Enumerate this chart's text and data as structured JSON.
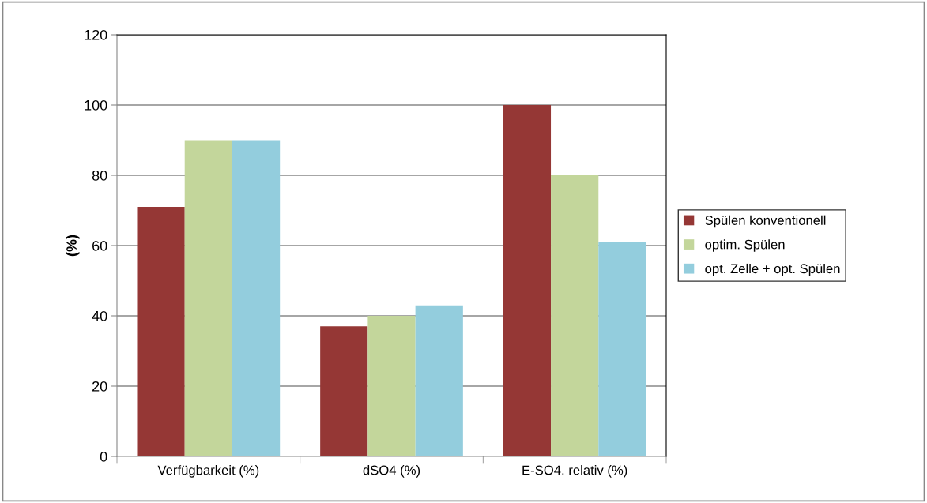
{
  "chart_data": {
    "type": "bar",
    "ylabel": "(%)",
    "categories": [
      "Verfügbarkeit (%)",
      "dSO4 (%)",
      "E-SO4. relativ (%)"
    ],
    "series": [
      {
        "name": "Spülen konventionell",
        "color": "#953735",
        "values": [
          71,
          37,
          100
        ]
      },
      {
        "name": "optim. Spülen",
        "color": "#c3d69b",
        "values": [
          90,
          40,
          80
        ]
      },
      {
        "name": "opt. Zelle + opt. Spülen",
        "color": "#93cddd",
        "values": [
          90,
          43,
          61
        ]
      }
    ],
    "ylim": [
      0,
      120
    ],
    "yticks": [
      0,
      20,
      40,
      60,
      80,
      100,
      120
    ],
    "grid": "y",
    "legend": "right"
  }
}
